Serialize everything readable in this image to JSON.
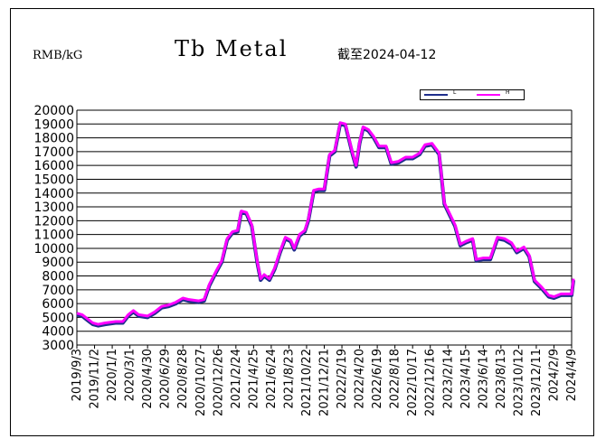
{
  "unit_label": "RMB/kG",
  "chart_data": {
    "type": "line",
    "title": "Tb Metal",
    "subtitle": "截至2024-04-12",
    "ylabel": "RMB/kG",
    "ylim": [
      3000,
      20000
    ],
    "yticks": [
      20000,
      19000,
      18000,
      17000,
      16000,
      15000,
      14000,
      13000,
      12000,
      11000,
      10000,
      9000,
      8000,
      7000,
      6000,
      5000,
      4000,
      3000
    ],
    "xticks": [
      "2019/9/3",
      "2019/11/2",
      "2020/1/1",
      "2020/3/1",
      "2020/4/30",
      "2020/6/29",
      "2020/8/28",
      "2020/10/27",
      "2020/12/26",
      "2021/2/24",
      "2021/4/25",
      "2021/6/24",
      "2021/8/23",
      "2021/10/22",
      "2021/12/21",
      "2022/2/19",
      "2022/4/20",
      "2022/6/19",
      "2022/8/18",
      "2022/10/17",
      "2022/12/16",
      "2023/2/14",
      "2023/4/15",
      "2023/6/14",
      "2023/8/13",
      "2023/10/12",
      "2023/12/11",
      "2024/2/9",
      "2024/4/9"
    ],
    "grid": true,
    "legend_position": "top-right",
    "series": [
      {
        "name": "L",
        "color": "#1f2e8c",
        "points": [
          [
            0,
            5200
          ],
          [
            0.3,
            5100
          ],
          [
            0.6,
            4800
          ],
          [
            0.9,
            4500
          ],
          [
            1.2,
            4400
          ],
          [
            1.6,
            4500
          ],
          [
            2.2,
            4600
          ],
          [
            2.6,
            4600
          ],
          [
            2.9,
            5100
          ],
          [
            3.2,
            5400
          ],
          [
            3.5,
            5100
          ],
          [
            4.0,
            5000
          ],
          [
            4.4,
            5300
          ],
          [
            4.8,
            5700
          ],
          [
            5.2,
            5800
          ],
          [
            5.6,
            6000
          ],
          [
            6.0,
            6300
          ],
          [
            6.3,
            6200
          ],
          [
            6.9,
            6100
          ],
          [
            7.2,
            6200
          ],
          [
            7.5,
            7300
          ],
          [
            7.9,
            8300
          ],
          [
            8.2,
            9000
          ],
          [
            8.5,
            10600
          ],
          [
            8.8,
            11100
          ],
          [
            9.1,
            11200
          ],
          [
            9.3,
            12600
          ],
          [
            9.6,
            12500
          ],
          [
            9.9,
            11600
          ],
          [
            10.2,
            9000
          ],
          [
            10.4,
            7700
          ],
          [
            10.6,
            8000
          ],
          [
            10.9,
            7700
          ],
          [
            11.2,
            8500
          ],
          [
            11.5,
            9700
          ],
          [
            11.8,
            10700
          ],
          [
            12.1,
            10500
          ],
          [
            12.3,
            9900
          ],
          [
            12.6,
            10900
          ],
          [
            12.9,
            11200
          ],
          [
            13.1,
            12000
          ],
          [
            13.4,
            14100
          ],
          [
            13.7,
            14200
          ],
          [
            14.0,
            14200
          ],
          [
            14.3,
            16700
          ],
          [
            14.6,
            17000
          ],
          [
            14.9,
            19000
          ],
          [
            15.2,
            18900
          ],
          [
            15.6,
            16800
          ],
          [
            15.8,
            15900
          ],
          [
            16.0,
            17600
          ],
          [
            16.2,
            18700
          ],
          [
            16.5,
            18500
          ],
          [
            16.8,
            18000
          ],
          [
            17.1,
            17300
          ],
          [
            17.5,
            17300
          ],
          [
            17.8,
            16100
          ],
          [
            18.2,
            16200
          ],
          [
            18.6,
            16500
          ],
          [
            19.0,
            16500
          ],
          [
            19.4,
            16800
          ],
          [
            19.7,
            17400
          ],
          [
            20.1,
            17500
          ],
          [
            20.5,
            16800
          ],
          [
            20.8,
            13200
          ],
          [
            21.1,
            12400
          ],
          [
            21.4,
            11600
          ],
          [
            21.7,
            10200
          ],
          [
            22.0,
            10400
          ],
          [
            22.4,
            10600
          ],
          [
            22.6,
            9100
          ],
          [
            23.0,
            9200
          ],
          [
            23.4,
            9200
          ],
          [
            23.8,
            10700
          ],
          [
            24.2,
            10600
          ],
          [
            24.6,
            10300
          ],
          [
            24.9,
            9700
          ],
          [
            25.3,
            10000
          ],
          [
            25.6,
            9400
          ],
          [
            25.9,
            7600
          ],
          [
            26.3,
            7100
          ],
          [
            26.7,
            6500
          ],
          [
            27.0,
            6400
          ],
          [
            27.4,
            6600
          ],
          [
            28.0,
            6600
          ],
          [
            28.1,
            7700
          ]
        ]
      },
      {
        "name": "H",
        "color": "#ff00ff",
        "points": [
          [
            0,
            5300
          ],
          [
            0.3,
            5200
          ],
          [
            0.6,
            4900
          ],
          [
            0.9,
            4600
          ],
          [
            1.2,
            4500
          ],
          [
            1.6,
            4600
          ],
          [
            2.2,
            4700
          ],
          [
            2.6,
            4700
          ],
          [
            2.9,
            5200
          ],
          [
            3.2,
            5500
          ],
          [
            3.5,
            5200
          ],
          [
            4.0,
            5100
          ],
          [
            4.4,
            5400
          ],
          [
            4.8,
            5800
          ],
          [
            5.2,
            5900
          ],
          [
            5.6,
            6100
          ],
          [
            6.0,
            6400
          ],
          [
            6.3,
            6300
          ],
          [
            6.9,
            6200
          ],
          [
            7.2,
            6300
          ],
          [
            7.5,
            7400
          ],
          [
            7.9,
            8400
          ],
          [
            8.2,
            9100
          ],
          [
            8.5,
            10700
          ],
          [
            8.8,
            11200
          ],
          [
            9.1,
            11300
          ],
          [
            9.3,
            12700
          ],
          [
            9.6,
            12600
          ],
          [
            9.9,
            11700
          ],
          [
            10.2,
            9100
          ],
          [
            10.4,
            7800
          ],
          [
            10.6,
            8100
          ],
          [
            10.9,
            7800
          ],
          [
            11.2,
            8600
          ],
          [
            11.5,
            9800
          ],
          [
            11.8,
            10800
          ],
          [
            12.1,
            10600
          ],
          [
            12.3,
            10000
          ],
          [
            12.6,
            11000
          ],
          [
            12.9,
            11300
          ],
          [
            13.1,
            12100
          ],
          [
            13.4,
            14200
          ],
          [
            13.7,
            14300
          ],
          [
            14.0,
            14300
          ],
          [
            14.3,
            16800
          ],
          [
            14.6,
            17100
          ],
          [
            14.9,
            19100
          ],
          [
            15.2,
            19000
          ],
          [
            15.6,
            16900
          ],
          [
            15.8,
            16000
          ],
          [
            16.0,
            17700
          ],
          [
            16.2,
            18800
          ],
          [
            16.5,
            18600
          ],
          [
            16.8,
            18100
          ],
          [
            17.1,
            17400
          ],
          [
            17.5,
            17400
          ],
          [
            17.8,
            16200
          ],
          [
            18.2,
            16300
          ],
          [
            18.6,
            16600
          ],
          [
            19.0,
            16600
          ],
          [
            19.4,
            16900
          ],
          [
            19.7,
            17500
          ],
          [
            20.1,
            17600
          ],
          [
            20.5,
            16900
          ],
          [
            20.8,
            13300
          ],
          [
            21.1,
            12500
          ],
          [
            21.4,
            11700
          ],
          [
            21.7,
            10300
          ],
          [
            22.0,
            10500
          ],
          [
            22.4,
            10700
          ],
          [
            22.6,
            9200
          ],
          [
            23.0,
            9300
          ],
          [
            23.4,
            9300
          ],
          [
            23.8,
            10800
          ],
          [
            24.2,
            10700
          ],
          [
            24.6,
            10400
          ],
          [
            24.9,
            9800
          ],
          [
            25.3,
            10100
          ],
          [
            25.6,
            9500
          ],
          [
            25.9,
            7700
          ],
          [
            26.3,
            7200
          ],
          [
            26.7,
            6600
          ],
          [
            27.0,
            6500
          ],
          [
            27.4,
            6700
          ],
          [
            28.0,
            6700
          ],
          [
            28.1,
            7800
          ]
        ]
      }
    ]
  }
}
